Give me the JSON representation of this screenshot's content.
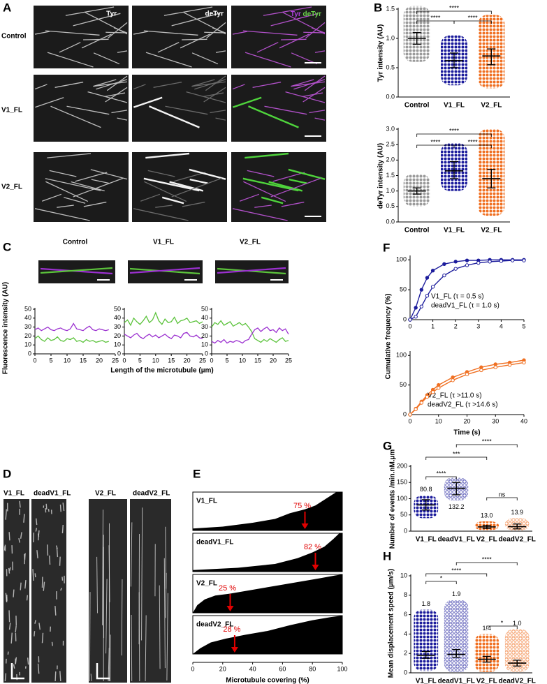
{
  "panel_labels": [
    "A",
    "B",
    "C",
    "D",
    "E",
    "F",
    "G",
    "H"
  ],
  "panel_a": {
    "channels": [
      "Tyr",
      "deTyr"
    ],
    "merge": [
      "Tyr",
      "deTyr"
    ],
    "rows": [
      "Control",
      "V1_FL",
      "V2_FL"
    ]
  },
  "panel_c": {
    "y_label": "Fluorescence intensity (AU)",
    "x_label": "Length of the microtubule (µm)"
  },
  "panel_d": {
    "labels": [
      "V1_FL",
      "deadV1_FL",
      "V2_FL",
      "deadV2_FL"
    ]
  },
  "panel_f": {
    "y_label": "Cumulative frequency (%)"
  },
  "chart_data": [
    {
      "type": "dotplot",
      "y_label": "Tyr intensity (AU)",
      "categories": [
        "Control",
        "V1_FL",
        "V2_FL"
      ],
      "colors": [
        "#9a9a9a",
        "#1c1c9c",
        "#f07022"
      ],
      "filled": [
        true,
        true,
        true
      ],
      "values": [
        1.0,
        0.62,
        0.7
      ],
      "error_low": [
        0.9,
        0.5,
        0.55
      ],
      "error_high": [
        1.1,
        0.75,
        0.82
      ],
      "min": [
        0.6,
        0.2,
        0.15
      ],
      "max": [
        1.55,
        1.05,
        1.4
      ],
      "ylim": [
        0,
        1.5
      ],
      "yticks": [
        {
          "value": 0,
          "label": "0.0"
        },
        0.5,
        {
          "value": 1,
          "label": "1.0"
        },
        1.5
      ],
      "significance": [
        {
          "pair": [
            0,
            1
          ],
          "label": "****"
        },
        {
          "pair": [
            1,
            2
          ],
          "label": "****"
        },
        {
          "pair": [
            0,
            2
          ],
          "label": "****"
        }
      ]
    },
    {
      "type": "dotplot",
      "y_label": "deTyr intensity (AU)",
      "categories": [
        "Control",
        "V1_FL",
        "V2_FL"
      ],
      "colors": [
        "#9a9a9a",
        "#1c1c9c",
        "#f07022"
      ],
      "filled": [
        true,
        true,
        true
      ],
      "values": [
        1.0,
        1.65,
        1.4
      ],
      "error_low": [
        0.9,
        1.4,
        1.1
      ],
      "error_high": [
        1.1,
        1.95,
        1.7
      ],
      "min": [
        0.5,
        1.0,
        0.2
      ],
      "max": [
        1.55,
        2.55,
        3.0
      ],
      "ylim": [
        0,
        3
      ],
      "yticks": [
        {
          "value": 0,
          "label": "0.0"
        },
        0.5,
        {
          "value": 1,
          "label": "1.0"
        },
        1.5,
        {
          "value": 2,
          "label": "2.0"
        },
        2.5,
        {
          "value": 3,
          "label": "3.0"
        }
      ],
      "significance": [
        {
          "pair": [
            0,
            1
          ],
          "label": "****"
        },
        {
          "pair": [
            1,
            2
          ],
          "label": "****"
        },
        {
          "pair": [
            0,
            2
          ],
          "label": "****"
        }
      ]
    },
    {
      "type": "profile",
      "title": "Control",
      "x": [
        0,
        1,
        2,
        3,
        4,
        5,
        6,
        7,
        8,
        9,
        10,
        11,
        12,
        13,
        14,
        15,
        16,
        17,
        18,
        19,
        20,
        21,
        22,
        23
      ],
      "series": [
        {
          "color": "#9b30d0",
          "values": [
            27,
            29,
            26,
            28,
            30,
            27,
            26,
            28,
            29,
            27,
            26,
            28,
            34,
            28,
            27,
            26,
            29,
            31,
            27,
            26,
            28,
            27,
            26,
            27
          ]
        },
        {
          "color": "#5cc33c",
          "values": [
            17,
            20,
            16,
            14,
            18,
            15,
            16,
            19,
            15,
            14,
            17,
            16,
            18,
            14,
            15,
            13,
            16,
            14,
            15,
            13,
            14,
            15,
            13,
            14
          ]
        }
      ],
      "xlim": [
        0,
        25
      ],
      "xticks": [
        0,
        5,
        10,
        15,
        20,
        25
      ],
      "ylim": [
        0,
        50
      ],
      "yticks": [
        0,
        10,
        20,
        30,
        40,
        50
      ]
    },
    {
      "type": "profile",
      "title": "V1_FL",
      "x": [
        0,
        1,
        2,
        3,
        4,
        5,
        6,
        7,
        8,
        9,
        10,
        11,
        12,
        13,
        14,
        15,
        16,
        17,
        18,
        19,
        20,
        21,
        22,
        23,
        24,
        25
      ],
      "series": [
        {
          "color": "#5cc33c",
          "values": [
            35,
            38,
            32,
            40,
            36,
            33,
            37,
            42,
            35,
            38,
            46,
            37,
            33,
            39,
            35,
            36,
            41,
            34,
            37,
            38,
            40,
            35,
            36,
            37,
            34,
            36
          ]
        },
        {
          "color": "#9b30d0",
          "values": [
            22,
            20,
            18,
            21,
            23,
            19,
            17,
            20,
            22,
            19,
            21,
            18,
            20,
            22,
            19,
            17,
            21,
            20,
            18,
            23,
            24,
            20,
            19,
            21,
            18,
            17
          ]
        }
      ],
      "xlim": [
        0,
        25
      ],
      "xticks": [
        0,
        5,
        10,
        15,
        20,
        25
      ],
      "ylim": [
        0,
        50
      ],
      "yticks": [
        0,
        10,
        20,
        30,
        40,
        50
      ]
    },
    {
      "type": "profile",
      "title": "V2_FL",
      "x": [
        0,
        1,
        2,
        3,
        4,
        5,
        6,
        7,
        8,
        9,
        10,
        11,
        12,
        13,
        14,
        15,
        16,
        17,
        18,
        19,
        20,
        21,
        22,
        23,
        24,
        25
      ],
      "series": [
        {
          "color": "#5cc33c",
          "values": [
            30,
            35,
            33,
            37,
            32,
            34,
            36,
            31,
            33,
            35,
            32,
            34,
            30,
            25,
            17,
            15,
            13,
            16,
            14,
            17,
            15,
            13,
            16,
            18,
            14,
            15
          ]
        },
        {
          "color": "#9b30d0",
          "values": [
            14,
            12,
            15,
            13,
            16,
            12,
            14,
            13,
            15,
            14,
            12,
            15,
            16,
            22,
            27,
            29,
            25,
            28,
            30,
            26,
            27,
            24,
            29,
            26,
            28,
            22
          ]
        }
      ],
      "xlim": [
        0,
        25
      ],
      "xticks": [
        0,
        5,
        10,
        15,
        20,
        25
      ],
      "ylim": [
        0,
        50
      ],
      "yticks": [
        0,
        10,
        20,
        30,
        40,
        50
      ]
    },
    {
      "type": "coverage",
      "x_label": "Microtubule covering (%)",
      "categories": [
        "V1_FL",
        "deadV1_FL",
        "V2_FL",
        "deadV2_FL"
      ],
      "values": [
        75,
        82,
        25,
        28
      ],
      "value_labels": [
        "75 %",
        "82 %",
        "25 %",
        "28 %"
      ],
      "color": "#e00000",
      "xlim": [
        0,
        100
      ],
      "xticks": [
        0,
        20,
        40,
        60,
        80,
        100
      ]
    },
    {
      "type": "line",
      "x": [
        0,
        0.25,
        0.5,
        0.75,
        1,
        1.5,
        2,
        2.5,
        3,
        3.5,
        4,
        4.5,
        5
      ],
      "series": [
        {
          "name": "V1_FL (τ = 0.5 s)",
          "color": "#1c1c9c",
          "filled": true,
          "values": [
            0,
            20,
            50,
            70,
            82,
            93,
            97,
            99,
            99,
            100,
            100,
            100,
            100
          ]
        },
        {
          "name": "deadV1_FL (τ = 1.0 s)",
          "color": "#1c1c9c",
          "filled": false,
          "values": [
            0,
            5,
            22,
            40,
            55,
            74,
            85,
            91,
            95,
            97,
            98,
            99,
            99
          ]
        }
      ],
      "xlim": [
        0,
        5
      ],
      "xticks": [
        0,
        1,
        2,
        3,
        4,
        5
      ],
      "ylim": [
        0,
        105
      ],
      "yticks": [
        0,
        50,
        100
      ]
    },
    {
      "type": "line",
      "x_label": "Time (s)",
      "x": [
        0,
        2,
        4,
        6,
        8,
        10,
        15,
        20,
        25,
        30,
        35,
        40
      ],
      "series": [
        {
          "name": "V2_FL (τ >11.0 s)",
          "color": "#f07022",
          "filled": true,
          "values": [
            0,
            10,
            22,
            33,
            42,
            50,
            63,
            72,
            80,
            85,
            88,
            92
          ]
        },
        {
          "name": "deadV2_FL (τ >14.6 s)",
          "color": "#f07022",
          "filled": false,
          "values": [
            0,
            9,
            20,
            30,
            38,
            45,
            58,
            68,
            75,
            80,
            84,
            88
          ]
        }
      ],
      "xlim": [
        0,
        40
      ],
      "xticks": [
        0,
        10,
        20,
        30,
        40
      ],
      "ylim": [
        0,
        105
      ],
      "yticks": [
        0,
        50,
        100
      ]
    },
    {
      "type": "dotplot",
      "y_label": "Number of events /min.nM.µm",
      "categories": [
        "V1_FL",
        "deadV1_FL",
        "V2_FL",
        "deadV2_FL"
      ],
      "colors": [
        "#1c1c9c",
        "#1c1c9c",
        "#f07022",
        "#f07022"
      ],
      "filled": [
        true,
        false,
        true,
        false
      ],
      "values": [
        80.8,
        132.2,
        13.0,
        13.9
      ],
      "value_labels": [
        "80.8",
        "132.2",
        "13.0",
        "13.9"
      ],
      "error_low": [
        65,
        112,
        8,
        7
      ],
      "error_high": [
        97,
        150,
        18,
        22
      ],
      "min": [
        40,
        95,
        3,
        2
      ],
      "max": [
        110,
        165,
        30,
        40
      ],
      "ylim": [
        0,
        200
      ],
      "yticks": [
        0,
        50,
        100,
        150,
        200
      ],
      "significance": [
        {
          "pair": [
            0,
            1
          ],
          "label": "****"
        },
        {
          "pair": [
            0,
            2
          ],
          "label": "***"
        },
        {
          "pair": [
            1,
            3
          ],
          "label": "****"
        },
        {
          "pair": [
            2,
            3
          ],
          "label": "ns"
        }
      ]
    },
    {
      "type": "dotplot",
      "y_label": "Mean displacement speed (µm/s)",
      "categories": [
        "V1_FL",
        "deadV1_FL",
        "V2_FL",
        "deadV2_FL"
      ],
      "colors": [
        "#1c1c9c",
        "#1c1c9c",
        "#f07022",
        "#f07022"
      ],
      "filled": [
        true,
        false,
        true,
        false
      ],
      "values": [
        1.8,
        1.9,
        1.4,
        1.0
      ],
      "value_labels": [
        "1.8",
        "1.9",
        "1.4",
        "1.0"
      ],
      "error_low": [
        1.5,
        1.6,
        1.1,
        0.7
      ],
      "error_high": [
        2.2,
        2.4,
        1.7,
        1.3
      ],
      "min": [
        0.2,
        0.1,
        0.1,
        0.1
      ],
      "max": [
        6.5,
        7.5,
        4.0,
        4.5
      ],
      "ylim": [
        0,
        10
      ],
      "yticks": [
        0,
        2,
        4,
        6,
        8,
        10
      ],
      "significance": [
        {
          "pair": [
            0,
            1
          ],
          "label": "*"
        },
        {
          "pair": [
            0,
            2
          ],
          "label": "****"
        },
        {
          "pair": [
            1,
            3
          ],
          "label": "****"
        },
        {
          "pair": [
            2,
            3
          ],
          "label": "*"
        }
      ]
    }
  ]
}
